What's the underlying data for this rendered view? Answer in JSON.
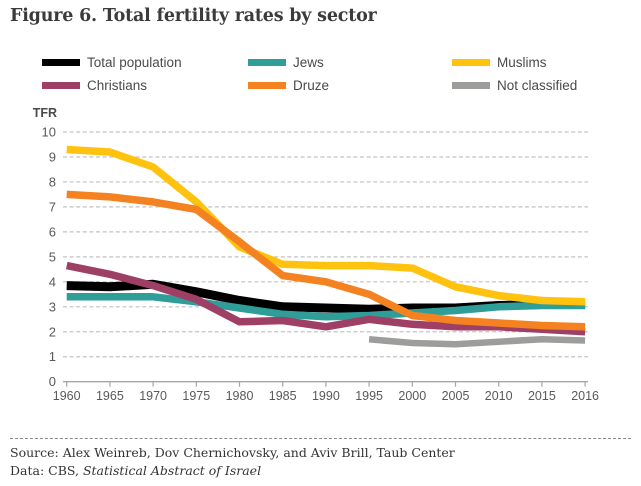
{
  "title": "Figure 6. Total fertility rates by sector",
  "y_axis_title": "TFR",
  "chart_data": {
    "type": "line",
    "x_labels": [
      "1960",
      "1965",
      "1970",
      "1975",
      "1980",
      "1985",
      "1990",
      "1995",
      "2000",
      "2005",
      "2010",
      "2015",
      "2016"
    ],
    "ylabel": "TFR",
    "ylim": [
      0,
      10
    ],
    "yticks": [
      0,
      1,
      2,
      3,
      4,
      5,
      6,
      7,
      8,
      9,
      10
    ],
    "grid": "horizontal-dashed",
    "legend_position": "top",
    "colors": {
      "grid": "#c2c2c2",
      "axis": "#a6a6a6",
      "tick_text": "#58595b"
    },
    "series": [
      {
        "name": "Total population",
        "color": "#000000",
        "values": [
          3.85,
          3.8,
          3.9,
          3.6,
          3.25,
          3.0,
          2.95,
          2.9,
          2.95,
          2.95,
          3.05,
          3.1,
          3.1
        ]
      },
      {
        "name": "Jews",
        "color": "#2f9e99",
        "values": [
          3.4,
          3.4,
          3.4,
          3.2,
          2.95,
          2.7,
          2.6,
          2.65,
          2.75,
          2.85,
          3.0,
          3.05,
          3.05
        ]
      },
      {
        "name": "Muslims",
        "color": "#ffc20e",
        "values": [
          9.3,
          9.2,
          8.6,
          7.2,
          5.4,
          4.7,
          4.65,
          4.65,
          4.55,
          3.8,
          3.45,
          3.25,
          3.2
        ]
      },
      {
        "name": "Christians",
        "color": "#9e4065",
        "values": [
          4.65,
          4.3,
          3.85,
          3.3,
          2.4,
          2.45,
          2.2,
          2.5,
          2.3,
          2.2,
          2.2,
          2.1,
          2.0
        ]
      },
      {
        "name": "Druze",
        "color": "#f58220",
        "values": [
          7.5,
          7.4,
          7.2,
          6.9,
          5.6,
          4.25,
          4.0,
          3.5,
          2.65,
          2.45,
          2.35,
          2.25,
          2.2
        ]
      },
      {
        "name": "Not classified",
        "color": "#9d9d9c",
        "values": [
          null,
          null,
          null,
          null,
          null,
          null,
          null,
          1.7,
          1.55,
          1.5,
          1.6,
          1.7,
          1.65
        ]
      }
    ]
  },
  "footer": {
    "source_line": "Source: Alex Weinreb, Dov Chernichovsky, and Aviv Brill, Taub Center",
    "data_prefix": "Data: CBS, ",
    "data_publication": "Statistical Abstract of Israel"
  }
}
